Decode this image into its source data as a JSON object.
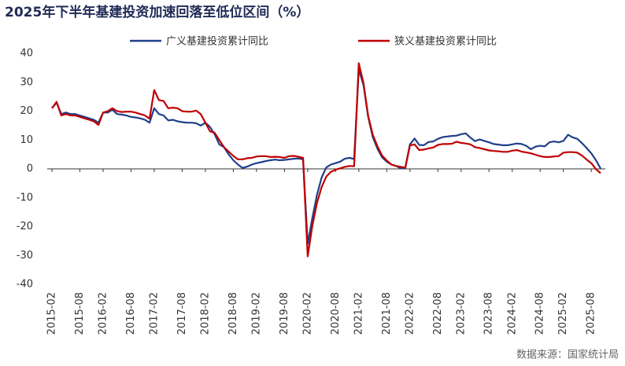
{
  "chart_data": {
    "type": "line",
    "title": "2025年下半年基建投资加速回落至低位区间（%）",
    "source": "数据来源：国家统计局",
    "categories": [
      "2015-02",
      null,
      null,
      null,
      null,
      null,
      "2015-08",
      null,
      null,
      null,
      null,
      "2016-02",
      null,
      null,
      null,
      null,
      null,
      "2016-08",
      null,
      null,
      null,
      null,
      "2017-02",
      null,
      null,
      null,
      null,
      null,
      "2017-08",
      null,
      null,
      null,
      null,
      "2018-02",
      null,
      null,
      null,
      null,
      null,
      "2018-08",
      null,
      null,
      null,
      null,
      "2019-02",
      null,
      null,
      null,
      null,
      null,
      "2019-08",
      null,
      null,
      null,
      null,
      "2020-02",
      null,
      null,
      null,
      null,
      null,
      "2020-08",
      null,
      null,
      null,
      null,
      "2021-02",
      null,
      null,
      null,
      null,
      null,
      "2021-08",
      null,
      null,
      null,
      null,
      "2022-02",
      null,
      null,
      null,
      null,
      null,
      "2022-08",
      null,
      null,
      null,
      null,
      "2023-02",
      null,
      null,
      null,
      null,
      null,
      "2023-08",
      null,
      null,
      null,
      null,
      "2024-02",
      null,
      null,
      null,
      null,
      null,
      "2024-08",
      null,
      null,
      null,
      null,
      "2025-02",
      null,
      null,
      null,
      null,
      null,
      "2025-08",
      null,
      null
    ],
    "series": [
      {
        "name": "广义基建投资累计同比",
        "color": "#1f3f8a",
        "values": [
          21,
          23,
          19,
          19.5,
          19,
          19,
          18.5,
          18,
          17.5,
          17,
          16,
          19.5,
          19.5,
          20.5,
          19,
          18.8,
          18.5,
          18,
          17.8,
          17.5,
          17,
          16,
          21,
          19,
          18.5,
          16.8,
          17,
          16.5,
          16.2,
          16,
          16,
          15.8,
          15,
          16,
          14.5,
          12,
          8.5,
          7.5,
          5,
          3,
          1.5,
          0.3,
          0.8,
          1.5,
          2,
          2.3,
          2.7,
          3,
          3.2,
          3,
          3.1,
          3.3,
          3.5,
          3.6,
          3.3,
          -26,
          -17,
          -9,
          -3,
          0.5,
          1.5,
          2,
          2.5,
          3.5,
          3.8,
          3.4,
          34.5,
          29,
          18,
          11,
          7,
          4,
          2.5,
          1.5,
          1,
          0.2,
          0.4,
          8.5,
          10.5,
          8.3,
          8.2,
          9.3,
          9.5,
          10.4,
          11,
          11.2,
          11.4,
          11.5,
          12,
          12.3,
          10.8,
          9.6,
          10.2,
          9.7,
          9.2,
          8.6,
          8.4,
          8.2,
          8.2,
          8.5,
          8.8,
          8.6,
          8,
          6.8,
          7.7,
          8,
          7.8,
          9.2,
          9.5,
          9.2,
          9.7,
          11.8,
          10.9,
          10.4,
          8.9,
          7.2,
          5.4,
          3,
          0.1
        ]
      },
      {
        "name": "狭义基建投资累计同比",
        "color": "#c00000",
        "values": [
          21,
          23.2,
          18.5,
          19,
          18.5,
          18.5,
          18,
          17.5,
          17,
          16.5,
          15.2,
          19.5,
          20,
          21,
          20,
          19.7,
          19.8,
          19.8,
          19.5,
          19,
          18.5,
          17.4,
          27.3,
          23.8,
          23.5,
          21,
          21.2,
          21,
          20,
          19.8,
          19.8,
          20.2,
          19,
          16,
          13,
          12.5,
          10,
          7.5,
          6,
          4.5,
          3.3,
          3.3,
          3.7,
          3.8,
          4.3,
          4.4,
          4.4,
          4.1,
          4.2,
          4.1,
          3.8,
          4.4,
          4.5,
          4.2,
          3.8,
          -30.3,
          -19.7,
          -11.8,
          -6.3,
          -2.7,
          -1,
          -0.3,
          0.2,
          0.7,
          1,
          0.9,
          36.6,
          29.7,
          18.4,
          11.8,
          7.8,
          4.6,
          2.9,
          1.5,
          1,
          0.7,
          0.4,
          8.1,
          8.5,
          6.5,
          6.7,
          7.1,
          7.4,
          8.3,
          8.6,
          8.6,
          8.7,
          9.4,
          9,
          8.8,
          8.5,
          7.5,
          7.2,
          6.8,
          6.4,
          6.2,
          6.1,
          5.9,
          5.9,
          6.3,
          6.5,
          6,
          5.7,
          5.4,
          4.9,
          4.4,
          4.1,
          4.1,
          4.3,
          4.4,
          5.6,
          5.8,
          5.8,
          5.6,
          4.6,
          3.2,
          2,
          -0.1,
          -1.5
        ]
      }
    ],
    "ylim": [
      -40,
      40
    ],
    "yticks": [
      -40,
      -30,
      -20,
      -10,
      0,
      10,
      20,
      30,
      40
    ],
    "grid": false
  }
}
